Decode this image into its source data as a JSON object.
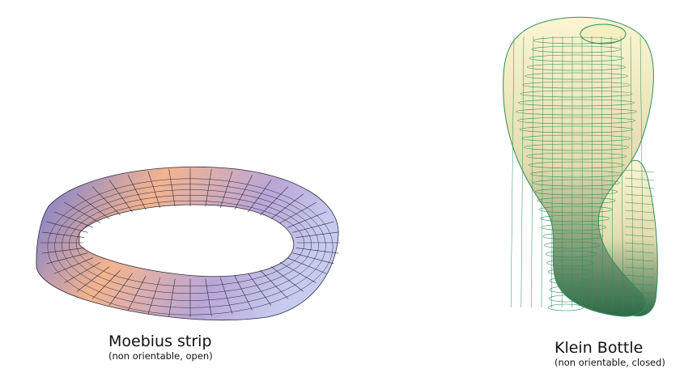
{
  "moebius": {
    "title": "Moebius strip",
    "subtitle": "(non orientable, open)",
    "colors": {
      "warm": "#f3b48f",
      "mid": "#b9a6d8",
      "cool": "#6f79d8",
      "light": "#c7ccef",
      "grid": "#2b2b3a"
    }
  },
  "klein": {
    "title": "Klein Bottle",
    "subtitle": "(non orientable, closed)",
    "colors": {
      "top": "#fbf6d2",
      "middle": "#e2dcae",
      "bottom": "#2f6a48",
      "grid": "#2f8f5b"
    }
  }
}
